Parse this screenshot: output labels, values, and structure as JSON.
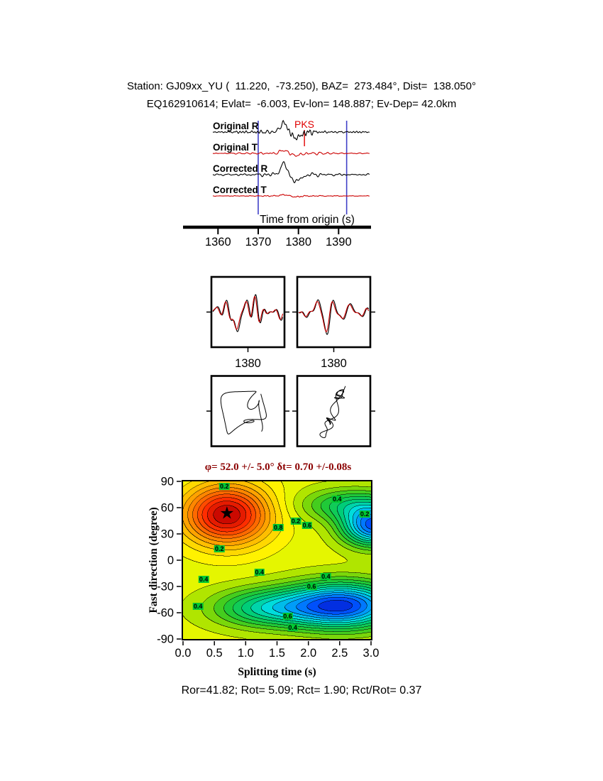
{
  "header": {
    "line1": "Station: GJ09xx_YU (  11.220,  -73.250), BAZ=  273.484°, Dist=  138.050°",
    "line2": "EQ162910614; Evlat=  -6.003, Ev-lon= 148.887; Ev-Dep= 42.0km"
  },
  "footer": {
    "stats": "Ror=41.82; Rot= 5.09; Rct= 1.90; Rct/Rot= 0.37"
  },
  "chart_data": [
    {
      "type": "line",
      "panel": "seismogram-traces",
      "xlabel": "Time from origin (s)",
      "xlim": [
        1351.3,
        1398.0
      ],
      "xticks": [
        1360,
        1370,
        1380,
        1390
      ],
      "phase": {
        "label": "PKS",
        "time": 1381.5,
        "color": "#e00000"
      },
      "window_markers": {
        "times": [
          1370.0,
          1392.0
        ],
        "color": "#4040c8"
      },
      "traces": [
        {
          "label": "Original R",
          "color": "#000000",
          "seed": 7,
          "amp": 5.5,
          "spike": 13
        },
        {
          "label": "Original T",
          "color": "#cc0000",
          "seed": 13,
          "amp": 3.2,
          "spike": 4.5
        },
        {
          "label": "Corrected R",
          "color": "#000000",
          "seed": 19,
          "amp": 5.5,
          "spike": 15
        },
        {
          "label": "Corrected T",
          "color": "#cc0000",
          "seed": 29,
          "amp": 1.4,
          "spike": 1.8
        }
      ]
    },
    {
      "type": "line",
      "panel": "windowed-waveform-compare",
      "boxes": [
        {
          "label": "1380",
          "seed": 41,
          "trough_u": 0.33,
          "colors": [
            "#000000",
            "#cc0000"
          ]
        },
        {
          "label": "1380",
          "seed": 57,
          "trough_u": 0.4,
          "colors": [
            "#000000",
            "#cc0000"
          ]
        }
      ]
    },
    {
      "type": "line",
      "panel": "particle-motion",
      "boxes": [
        {
          "style": "loops",
          "seed": 5
        },
        {
          "style": "linear",
          "seed": 9,
          "angle_deg": 68
        }
      ]
    },
    {
      "type": "heatmap",
      "panel": "splitting-misfit-surface",
      "title": "φ= 52.0 +/- 5.0° δt= 0.70 +/-0.08s",
      "title_color": "#8b0000",
      "xlabel": "Splitting time (s)",
      "ylabel": "Fast direction (degree)",
      "xlim": [
        0,
        3
      ],
      "ylim": [
        -90,
        90
      ],
      "xtick_labels": [
        "0.0",
        "0.5",
        "1.0",
        "1.5",
        "2.0",
        "2.5",
        "3.0"
      ],
      "ytick_labels": [
        "90",
        "60",
        "30",
        "0",
        "-30",
        "-60",
        "-90"
      ],
      "best": {
        "phi_deg": 52.0,
        "phi_err_deg": 5.0,
        "dt_s": 0.7,
        "dt_err_s": 0.08
      },
      "star_glyph": "★",
      "contour_interval": 0.04,
      "contour_labels": [
        {
          "v": "0.2",
          "x": 0.66,
          "y": 84
        },
        {
          "v": "0.2",
          "x": 1.8,
          "y": 45
        },
        {
          "v": "0.8",
          "x": 1.52,
          "y": 37
        },
        {
          "v": "0.6",
          "x": 1.98,
          "y": 40
        },
        {
          "v": "0.4",
          "x": 2.46,
          "y": 70
        },
        {
          "v": "0.2",
          "x": 2.9,
          "y": 53
        },
        {
          "v": "0.2",
          "x": 0.58,
          "y": 13
        },
        {
          "v": "0.4",
          "x": 1.22,
          "y": -14
        },
        {
          "v": "0.4",
          "x": 0.33,
          "y": -22
        },
        {
          "v": "0.4",
          "x": 2.28,
          "y": -19
        },
        {
          "v": "0.6",
          "x": 2.05,
          "y": -30
        },
        {
          "v": "0.4",
          "x": 0.24,
          "y": -53
        },
        {
          "v": "0.6",
          "x": 1.67,
          "y": -64
        },
        {
          "v": "0.4",
          "x": 1.75,
          "y": -77
        }
      ]
    }
  ]
}
